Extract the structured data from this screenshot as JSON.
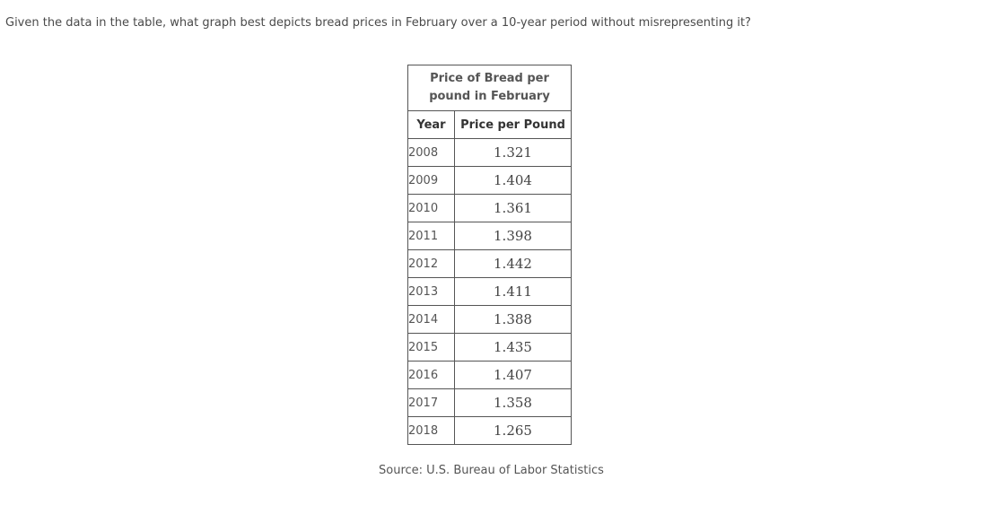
{
  "question": "Given the data in the table, what graph best depicts bread prices in February over a 10-year period without misrepresenting it?",
  "chart_data": {
    "type": "table",
    "title": "Price of Bread per pound in February",
    "title_lines": [
      "Price of Bread per",
      "pound in February"
    ],
    "columns": [
      "Year",
      "Price per Pound"
    ],
    "rows": [
      {
        "year": "2008",
        "price": "1.321"
      },
      {
        "year": "2009",
        "price": "1.404"
      },
      {
        "year": "2010",
        "price": "1.361"
      },
      {
        "year": "2011",
        "price": "1.398"
      },
      {
        "year": "2012",
        "price": "1.442"
      },
      {
        "year": "2013",
        "price": "1.411"
      },
      {
        "year": "2014",
        "price": "1.388"
      },
      {
        "year": "2015",
        "price": "1.435"
      },
      {
        "year": "2016",
        "price": "1.407"
      },
      {
        "year": "2017",
        "price": "1.358"
      },
      {
        "year": "2018",
        "price": "1.265"
      }
    ]
  },
  "source": "Source: U.S. Bureau of Labor Statistics"
}
